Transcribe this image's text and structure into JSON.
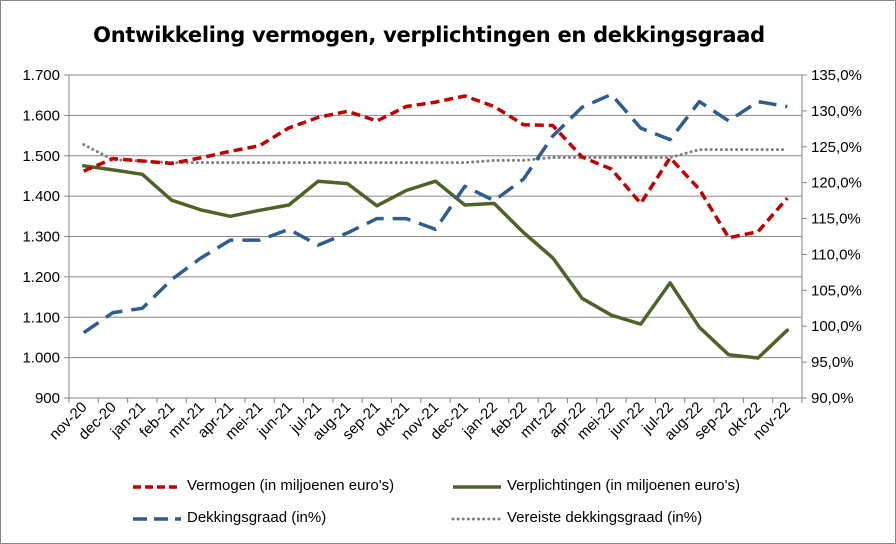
{
  "chart_data": {
    "type": "line",
    "title": "Ontwikkeling vermogen, verplichtingen en dekkingsgraad",
    "categories": [
      "nov-20",
      "dec-20",
      "jan-21",
      "feb-21",
      "mrt-21",
      "apr-21",
      "mei-21",
      "jun-21",
      "jul-21",
      "aug-21",
      "sep-21",
      "okt-21",
      "nov-21",
      "dec-21",
      "jan-22",
      "feb-22",
      "mrt-22",
      "apr-22",
      "mei-22",
      "jun-22",
      "jul-22",
      "aug-22",
      "sep-22",
      "okt-22",
      "nov-22"
    ],
    "y_left": {
      "ylim": [
        900,
        1700
      ],
      "ticks": [
        900,
        1000,
        1100,
        1200,
        1300,
        1400,
        1500,
        1600,
        1700
      ],
      "tick_labels": [
        "900",
        "1.000",
        "1.100",
        "1.200",
        "1.300",
        "1.400",
        "1.500",
        "1.600",
        "1.700"
      ]
    },
    "y_right": {
      "ylim": [
        90,
        135
      ],
      "ticks": [
        90,
        95,
        100,
        105,
        110,
        115,
        120,
        125,
        130,
        135
      ],
      "tick_labels": [
        "90,0%",
        "95,0%",
        "100,0%",
        "105,0%",
        "110,0%",
        "115,0%",
        "120,0%",
        "125,0%",
        "130,0%",
        "135,0%"
      ]
    },
    "grid": "horizontal",
    "legend_position": "bottom",
    "series": [
      {
        "name": "Vermogen (in miljoenen euro's)",
        "axis": "left",
        "color": "#C00000",
        "style": "dashed",
        "values": [
          1462,
          1493,
          1487,
          1481,
          1495,
          1511,
          1525,
          1569,
          1595,
          1610,
          1586,
          1622,
          1633,
          1648,
          1622,
          1577,
          1575,
          1497,
          1467,
          1382,
          1495,
          1417,
          1297,
          1312,
          1395
        ]
      },
      {
        "name": "Verplichtingen (in miljoenen euro's)",
        "axis": "left",
        "color": "#4F6228",
        "style": "solid",
        "values": [
          1475,
          1465,
          1454,
          1390,
          1366,
          1350,
          1365,
          1378,
          1437,
          1431,
          1376,
          1414,
          1437,
          1378,
          1382,
          1310,
          1247,
          1147,
          1105,
          1083,
          1185,
          1075,
          1007,
          999,
          1068
        ]
      },
      {
        "name": "Dekkingsgraad (in%)",
        "axis": "right",
        "color": "#2E5D8E",
        "style": "long-dash",
        "values": [
          99.1,
          101.9,
          102.5,
          106.5,
          109.5,
          112.0,
          112.0,
          113.5,
          111.3,
          113.0,
          115.0,
          115.0,
          113.5,
          119.5,
          117.5,
          120.5,
          126.5,
          130.5,
          132.3,
          127.6,
          126.0,
          131.3,
          128.6,
          131.3,
          130.6
        ]
      },
      {
        "name": "Vereiste dekkingsgraad (in%)",
        "axis": "right",
        "color": "#808080",
        "style": "dotted",
        "values": [
          125.3,
          123.2,
          123.0,
          122.8,
          122.8,
          122.8,
          122.8,
          122.8,
          122.8,
          122.8,
          122.8,
          122.8,
          122.8,
          122.8,
          123.1,
          123.1,
          123.5,
          123.5,
          123.5,
          123.5,
          123.5,
          124.6,
          124.6,
          124.6,
          124.6
        ]
      }
    ]
  }
}
